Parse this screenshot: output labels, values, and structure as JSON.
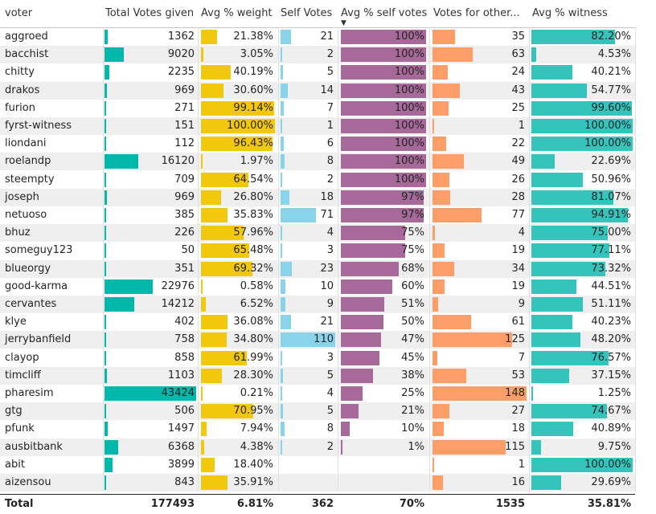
{
  "table": {
    "columns": [
      {
        "key": "voter",
        "label": "voter"
      },
      {
        "key": "total_votes",
        "label": "Total Votes given"
      },
      {
        "key": "avg_weight",
        "label": "Avg % weight"
      },
      {
        "key": "self_votes",
        "label": "Self Votes"
      },
      {
        "key": "avg_self",
        "label": "Avg % self votes"
      },
      {
        "key": "votes_others",
        "label": "Votes for other..."
      },
      {
        "key": "avg_witness",
        "label": "Avg % witness"
      }
    ],
    "sorted_column": "Avg % self votes",
    "sort_direction": "descending",
    "rows": [
      {
        "voter": "aggroed",
        "total_votes": "1362",
        "avg_weight": "21.38%",
        "self_votes": "21",
        "avg_self": "100%",
        "votes_others": "35",
        "avg_witness": "82.20%"
      },
      {
        "voter": "bacchist",
        "total_votes": "9020",
        "avg_weight": "3.05%",
        "self_votes": "2",
        "avg_self": "100%",
        "votes_others": "63",
        "avg_witness": "4.53%"
      },
      {
        "voter": "chitty",
        "total_votes": "2235",
        "avg_weight": "40.19%",
        "self_votes": "5",
        "avg_self": "100%",
        "votes_others": "24",
        "avg_witness": "40.21%"
      },
      {
        "voter": "drakos",
        "total_votes": "969",
        "avg_weight": "30.60%",
        "self_votes": "14",
        "avg_self": "100%",
        "votes_others": "43",
        "avg_witness": "54.77%"
      },
      {
        "voter": "furion",
        "total_votes": "271",
        "avg_weight": "99.14%",
        "self_votes": "7",
        "avg_self": "100%",
        "votes_others": "25",
        "avg_witness": "99.60%"
      },
      {
        "voter": "fyrst-witness",
        "total_votes": "151",
        "avg_weight": "100.00%",
        "self_votes": "1",
        "avg_self": "100%",
        "votes_others": "1",
        "avg_witness": "100.00%"
      },
      {
        "voter": "liondani",
        "total_votes": "112",
        "avg_weight": "96.43%",
        "self_votes": "6",
        "avg_self": "100%",
        "votes_others": "22",
        "avg_witness": "100.00%"
      },
      {
        "voter": "roelandp",
        "total_votes": "16120",
        "avg_weight": "1.97%",
        "self_votes": "8",
        "avg_self": "100%",
        "votes_others": "49",
        "avg_witness": "22.69%"
      },
      {
        "voter": "steempty",
        "total_votes": "709",
        "avg_weight": "64.54%",
        "self_votes": "2",
        "avg_self": "100%",
        "votes_others": "26",
        "avg_witness": "50.96%"
      },
      {
        "voter": "joseph",
        "total_votes": "969",
        "avg_weight": "26.80%",
        "self_votes": "18",
        "avg_self": "97%",
        "votes_others": "28",
        "avg_witness": "81.07%"
      },
      {
        "voter": "netuoso",
        "total_votes": "385",
        "avg_weight": "35.83%",
        "self_votes": "71",
        "avg_self": "97%",
        "votes_others": "77",
        "avg_witness": "94.91%"
      },
      {
        "voter": "bhuz",
        "total_votes": "226",
        "avg_weight": "57.96%",
        "self_votes": "4",
        "avg_self": "75%",
        "votes_others": "4",
        "avg_witness": "75.00%"
      },
      {
        "voter": "someguy123",
        "total_votes": "50",
        "avg_weight": "65.48%",
        "self_votes": "3",
        "avg_self": "75%",
        "votes_others": "19",
        "avg_witness": "77.11%"
      },
      {
        "voter": "blueorgy",
        "total_votes": "351",
        "avg_weight": "69.32%",
        "self_votes": "23",
        "avg_self": "68%",
        "votes_others": "34",
        "avg_witness": "73.32%"
      },
      {
        "voter": "good-karma",
        "total_votes": "22976",
        "avg_weight": "0.58%",
        "self_votes": "10",
        "avg_self": "60%",
        "votes_others": "19",
        "avg_witness": "44.51%"
      },
      {
        "voter": "cervantes",
        "total_votes": "14212",
        "avg_weight": "6.52%",
        "self_votes": "9",
        "avg_self": "51%",
        "votes_others": "9",
        "avg_witness": "51.11%"
      },
      {
        "voter": "klye",
        "total_votes": "402",
        "avg_weight": "36.08%",
        "self_votes": "21",
        "avg_self": "50%",
        "votes_others": "61",
        "avg_witness": "40.23%"
      },
      {
        "voter": "jerrybanfield",
        "total_votes": "758",
        "avg_weight": "34.80%",
        "self_votes": "110",
        "avg_self": "47%",
        "votes_others": "125",
        "avg_witness": "48.20%"
      },
      {
        "voter": "clayop",
        "total_votes": "858",
        "avg_weight": "61.99%",
        "self_votes": "3",
        "avg_self": "45%",
        "votes_others": "7",
        "avg_witness": "76.57%"
      },
      {
        "voter": "timcliff",
        "total_votes": "1103",
        "avg_weight": "28.30%",
        "self_votes": "5",
        "avg_self": "38%",
        "votes_others": "53",
        "avg_witness": "37.15%"
      },
      {
        "voter": "pharesim",
        "total_votes": "43424",
        "avg_weight": "0.21%",
        "self_votes": "4",
        "avg_self": "25%",
        "votes_others": "148",
        "avg_witness": "1.25%"
      },
      {
        "voter": "gtg",
        "total_votes": "506",
        "avg_weight": "70.95%",
        "self_votes": "5",
        "avg_self": "21%",
        "votes_others": "27",
        "avg_witness": "74.67%"
      },
      {
        "voter": "pfunk",
        "total_votes": "1497",
        "avg_weight": "7.94%",
        "self_votes": "8",
        "avg_self": "10%",
        "votes_others": "18",
        "avg_witness": "40.89%"
      },
      {
        "voter": "ausbitbank",
        "total_votes": "6368",
        "avg_weight": "4.38%",
        "self_votes": "2",
        "avg_self": "1%",
        "votes_others": "115",
        "avg_witness": "9.75%"
      },
      {
        "voter": "abit",
        "total_votes": "3899",
        "avg_weight": "18.40%",
        "self_votes": "",
        "avg_self": "",
        "votes_others": "1",
        "avg_witness": "100.00%"
      },
      {
        "voter": "aizensou",
        "total_votes": "843",
        "avg_weight": "35.91%",
        "self_votes": "",
        "avg_self": "",
        "votes_others": "16",
        "avg_witness": "29.69%"
      }
    ],
    "total": {
      "voter": "Total",
      "total_votes": "177493",
      "avg_weight": "6.81%",
      "self_votes": "362",
      "avg_self": "70%",
      "votes_others": "1535",
      "avg_witness": "35.81%"
    }
  },
  "colors": {
    "total_votes_bar": "#01b8aa",
    "avg_weight_bar": "#f2c80f",
    "self_votes_bar": "#8ad4eb",
    "avg_self_bar": "#a66999",
    "votes_others_bar": "#fd9d67",
    "avg_witness_bar": "#35c4bc",
    "row_alt": "#efefef"
  },
  "bar_scale": {
    "total_votes_max": 43424,
    "avg_weight_max": 100,
    "self_votes_max": 110,
    "avg_self_max": 100,
    "votes_others_max": 148,
    "avg_witness_max": 100
  },
  "icons": {
    "sort": "sort-descending-icon"
  }
}
